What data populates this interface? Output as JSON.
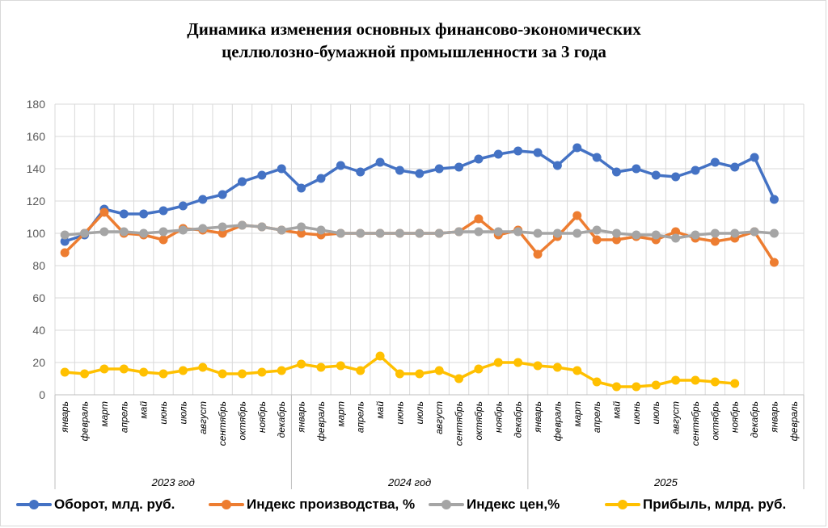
{
  "chart_data": {
    "type": "line",
    "title_lines": [
      "Динамика изменения основных финансово-экономических",
      "целлюлозно-бумажной промышленности за  3 года"
    ],
    "ylim": [
      0,
      180
    ],
    "yticks": [
      0,
      20,
      40,
      60,
      80,
      100,
      120,
      140,
      160,
      180
    ],
    "grid": true,
    "legend_position": "bottom",
    "categories": [
      "январь",
      "февраль",
      "март",
      "апрель",
      "май",
      "июнь",
      "июль",
      "август",
      "сентябрь",
      "октябрь",
      "ноябрь",
      "декабрь",
      "январь",
      "февраль",
      "март",
      "апрель",
      "май",
      "июнь",
      "июль",
      "август",
      "сентябрь",
      "октябрь",
      "ноябрь",
      "декабрь",
      "январь",
      "февраль",
      "март",
      "апрель",
      "май",
      "июнь",
      "июль",
      "август",
      "сентябрь",
      "октябрь",
      "ноябрь",
      "декабрь",
      "январь",
      "февраль"
    ],
    "groups": [
      {
        "label": "2023 год",
        "start": 0,
        "count": 12
      },
      {
        "label": "2024 год",
        "start": 12,
        "count": 12
      },
      {
        "label": "2025",
        "start": 24,
        "count": 14
      }
    ],
    "series": [
      {
        "name": "Оборот, млд. руб.",
        "color": "#4472c4",
        "values": [
          95,
          99,
          115,
          112,
          112,
          114,
          117,
          121,
          124,
          132,
          136,
          140,
          128,
          134,
          142,
          138,
          144,
          139,
          137,
          140,
          141,
          146,
          149,
          151,
          150,
          142,
          153,
          147,
          138,
          140,
          136,
          135,
          139,
          144,
          141,
          147,
          121,
          null
        ]
      },
      {
        "name": "Индекс производства, %",
        "color": "#ed7d31",
        "values": [
          88,
          100,
          113,
          100,
          99,
          96,
          103,
          102,
          100,
          105,
          104,
          102,
          100,
          99,
          100,
          100,
          100,
          100,
          100,
          100,
          101,
          109,
          99,
          102,
          87,
          98,
          111,
          96,
          96,
          98,
          96,
          101,
          97,
          95,
          97,
          101,
          82,
          null
        ]
      },
      {
        "name": "Индекс цен,%",
        "color": "#a5a5a5",
        "values": [
          99,
          100,
          101,
          101,
          100,
          101,
          102,
          103,
          104,
          105,
          104,
          102,
          104,
          102,
          100,
          100,
          100,
          100,
          100,
          100,
          101,
          101,
          101,
          101,
          100,
          100,
          100,
          102,
          100,
          99,
          99,
          97,
          99,
          100,
          100,
          101,
          100,
          null
        ]
      },
      {
        "name": "Прибыль, млрд. руб.",
        "color": "#ffc000",
        "values": [
          14,
          13,
          16,
          16,
          14,
          13,
          15,
          17,
          13,
          13,
          14,
          15,
          19,
          17,
          18,
          15,
          24,
          13,
          13,
          15,
          10,
          16,
          20,
          20,
          18,
          17,
          15,
          8,
          5,
          5,
          6,
          9,
          9,
          8,
          7,
          null,
          null,
          null
        ]
      }
    ]
  }
}
